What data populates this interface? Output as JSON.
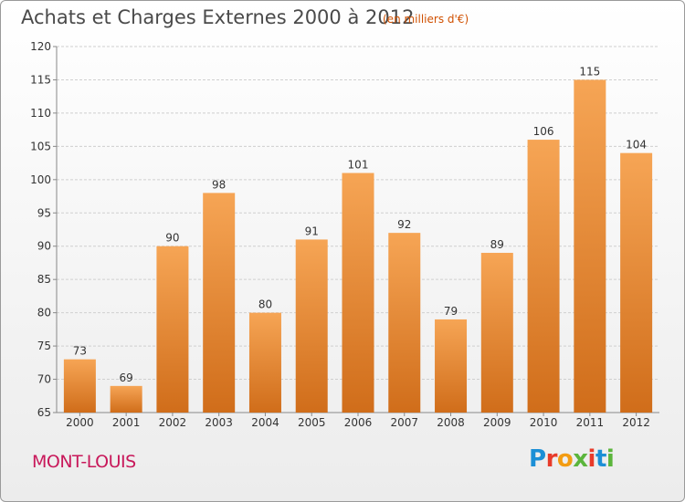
{
  "title": "Achats et Charges Externes 2000 à 2012",
  "subtitle": "(en milliers d'€)",
  "commune": "MONT-LOUIS",
  "brand": {
    "letters": [
      "P",
      "r",
      "o",
      "x",
      "i",
      "t",
      "i"
    ],
    "colors": [
      "#1c8fd6",
      "#e83b2a",
      "#f39c12",
      "#5bb53c",
      "#e83b2a",
      "#1c8fd6",
      "#5bb53c"
    ]
  },
  "chart_data": {
    "type": "bar",
    "categories": [
      "2000",
      "2001",
      "2002",
      "2003",
      "2004",
      "2005",
      "2006",
      "2007",
      "2008",
      "2009",
      "2010",
      "2011",
      "2012"
    ],
    "values": [
      73,
      69,
      90,
      98,
      80,
      91,
      101,
      92,
      79,
      89,
      106,
      115,
      104
    ],
    "ylim": [
      65,
      120
    ],
    "yticks": [
      65,
      70,
      75,
      80,
      85,
      90,
      95,
      100,
      105,
      110,
      115,
      120
    ],
    "grid": true,
    "colors": {
      "bar_light": "#f6a555",
      "bar_dark": "#d06d1a",
      "grid": "#cfcfcf",
      "axis": "#888888"
    }
  }
}
